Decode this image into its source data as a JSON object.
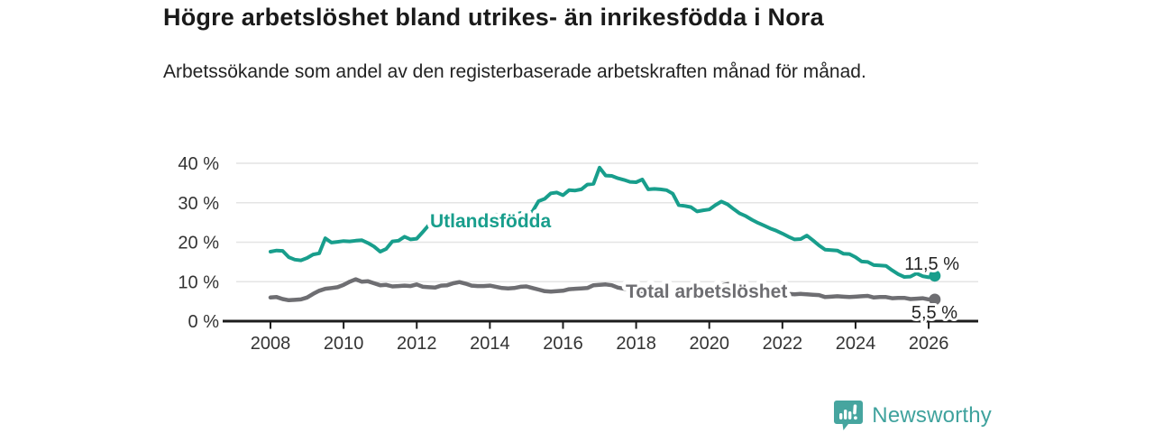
{
  "title": "Högre arbetslöshet bland utrikes- än inrikesfödda i Nora",
  "subtitle": "Arbetssökande som andel av den registerbaserade arbetskraften månad för månad.",
  "branding": {
    "logo_text": "Newsworthy",
    "logo_icon": "bar-chart-speech-bubble-icon",
    "logo_color": "#46a59f",
    "logo_text_color": "#3fa29d"
  },
  "colors": {
    "foreign_born_line": "#189e8c",
    "total_line": "#6e6e72",
    "gridline": "#e4e4e4",
    "axis": "#1c1c1c",
    "tick_text": "#333333"
  },
  "chart_data": {
    "type": "line",
    "unit": "%",
    "grid": "horizontal",
    "x_axis": {
      "range_years": [
        2007.7,
        2026.6
      ],
      "ticks": [
        2008,
        2010,
        2012,
        2014,
        2016,
        2018,
        2020,
        2022,
        2024,
        2026
      ],
      "tick_labels": [
        "2008",
        "2010",
        "2012",
        "2014",
        "2016",
        "2018",
        "2020",
        "2022",
        "2024",
        "2026"
      ]
    },
    "y_axis": {
      "range": [
        0,
        40
      ],
      "ticks": [
        0,
        10,
        20,
        30,
        40
      ],
      "tick_labels": [
        "0 %",
        "10 %",
        "20 %",
        "30 %",
        "40 %"
      ]
    },
    "series": [
      {
        "name": "Utlandsfödda",
        "color": "#189e8c",
        "end_label": "11,5 %",
        "end_value": 11.5,
        "x_start_year": 2008,
        "x_step_months": 2,
        "values": [
          17.6,
          17.9,
          17.8,
          16.2,
          15.6,
          15.4,
          16.0,
          16.9,
          17.2,
          21.0,
          19.9,
          20.1,
          20.3,
          20.2,
          20.4,
          20.5,
          19.8,
          18.9,
          17.6,
          18.3,
          20.2,
          20.4,
          21.4,
          20.7,
          20.9,
          22.6,
          24.4,
          24.6,
          25.3,
          25.5,
          26.2,
          26.6,
          26.1,
          26.8,
          26.4,
          26.9,
          26.5,
          27.0,
          26.6,
          27.2,
          26.9,
          27.4,
          27.1,
          27.8,
          30.4,
          31.0,
          32.4,
          32.6,
          31.9,
          33.2,
          33.1,
          33.4,
          34.6,
          34.8,
          38.9,
          36.9,
          36.8,
          36.2,
          35.8,
          35.3,
          35.2,
          35.9,
          33.4,
          33.5,
          33.4,
          33.2,
          32.3,
          29.4,
          29.2,
          28.9,
          27.8,
          28.1,
          28.3,
          29.4,
          30.3,
          29.6,
          28.4,
          27.3,
          26.6,
          25.7,
          24.9,
          24.2,
          23.5,
          22.9,
          22.2,
          21.4,
          20.7,
          20.8,
          21.7,
          20.5,
          19.2,
          18.1,
          18.0,
          17.9,
          17.1,
          17.0,
          16.2,
          15.1,
          15.0,
          14.2,
          14.1,
          14.0,
          12.9,
          11.9,
          11.2,
          11.3,
          12.1,
          11.4,
          11.1,
          11.5
        ]
      },
      {
        "name": "Total arbetslöshet",
        "color": "#6e6e72",
        "end_label": "5,5 %",
        "end_value": 5.5,
        "x_start_year": 2008,
        "x_step_months": 2,
        "values": [
          6.0,
          6.1,
          5.6,
          5.3,
          5.4,
          5.5,
          6.0,
          6.9,
          7.7,
          8.2,
          8.4,
          8.6,
          9.2,
          10.0,
          10.6,
          10.0,
          10.1,
          9.6,
          9.1,
          9.2,
          8.8,
          8.9,
          9.0,
          8.9,
          9.3,
          8.7,
          8.6,
          8.5,
          9.0,
          9.1,
          9.6,
          9.9,
          9.5,
          9.0,
          8.9,
          8.9,
          9.0,
          8.7,
          8.4,
          8.3,
          8.4,
          8.7,
          8.8,
          8.4,
          8.0,
          7.6,
          7.5,
          7.6,
          7.7,
          8.1,
          8.2,
          8.3,
          8.4,
          9.1,
          9.2,
          9.3,
          9.1,
          8.5,
          8.2,
          7.9,
          7.7,
          7.6,
          7.5,
          7.4,
          7.3,
          7.2,
          7.1,
          7.0,
          7.1,
          7.0,
          6.9,
          7.0,
          7.2,
          8.2,
          9.0,
          9.4,
          9.2,
          8.9,
          8.6,
          8.3,
          8.0,
          7.7,
          7.4,
          7.2,
          7.0,
          6.9,
          6.8,
          6.9,
          6.8,
          6.7,
          6.6,
          6.1,
          6.2,
          6.3,
          6.2,
          6.1,
          6.2,
          6.3,
          6.4,
          6.0,
          6.1,
          6.1,
          5.8,
          5.9,
          5.9,
          5.6,
          5.7,
          5.8,
          5.5,
          5.5
        ]
      }
    ]
  }
}
